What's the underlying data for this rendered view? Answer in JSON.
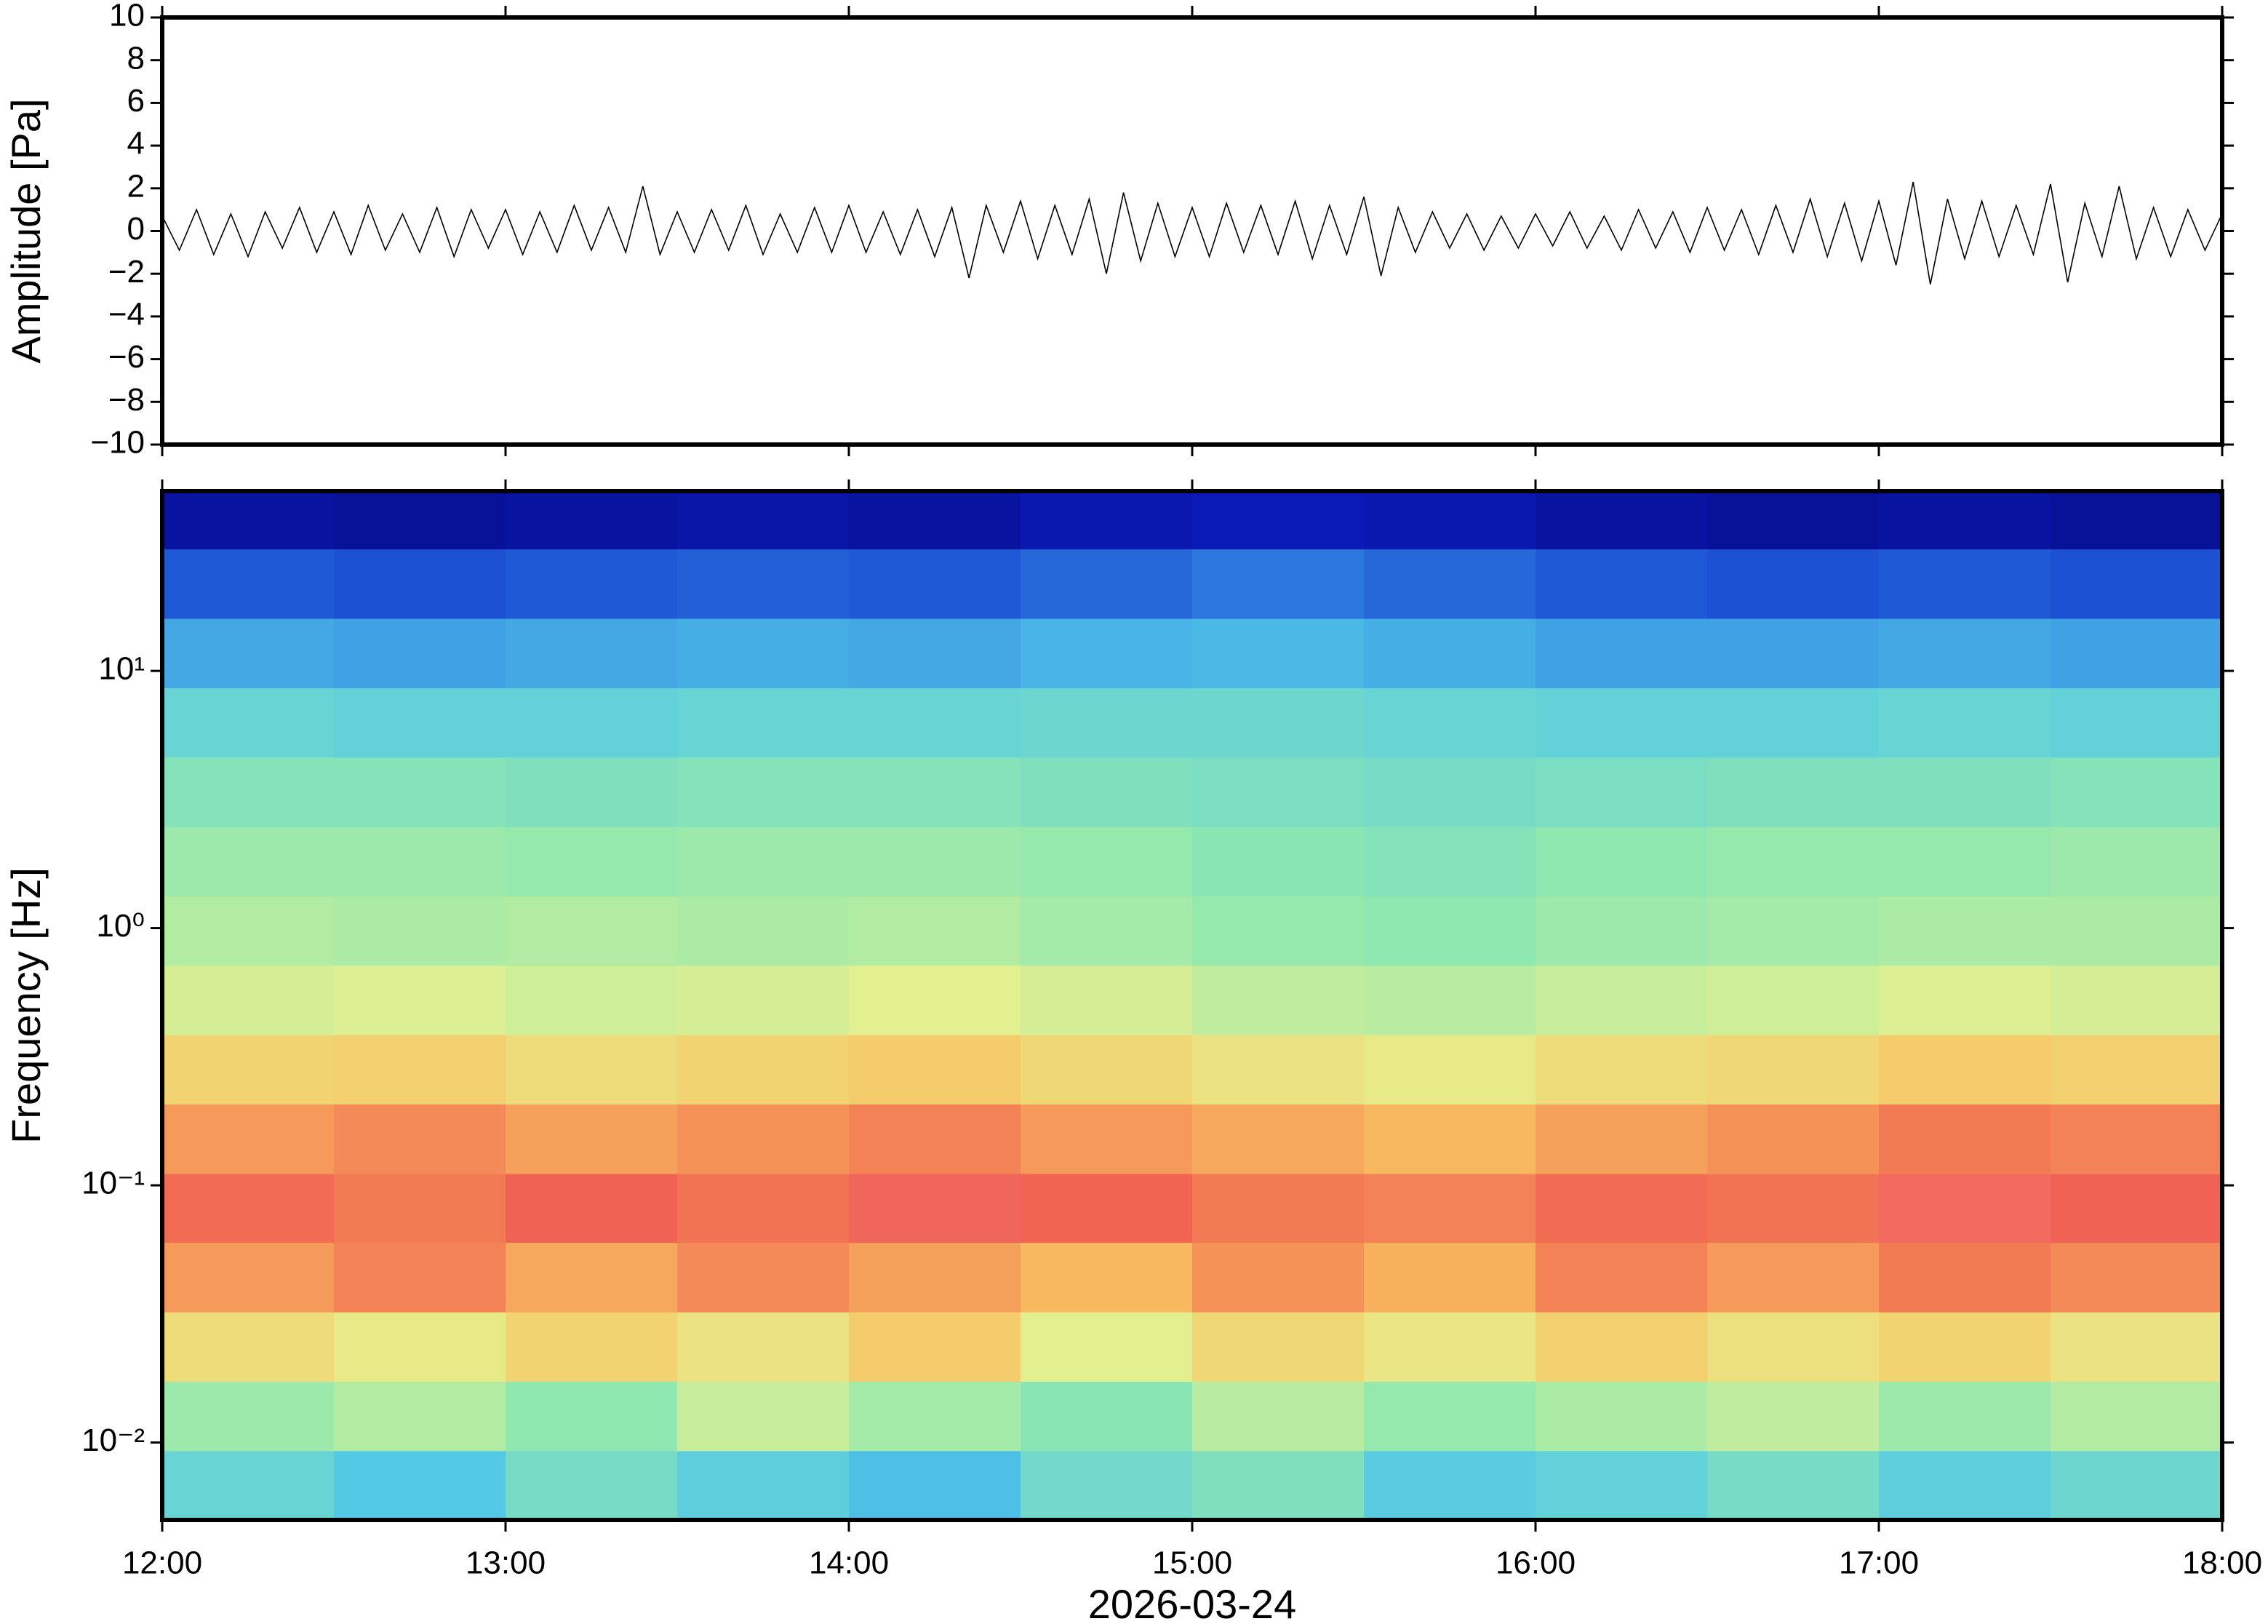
{
  "chart_data": [
    {
      "type": "line",
      "ylabel": "Amplitude [Pa]",
      "color": "#000000",
      "xlim": [
        12,
        18
      ],
      "xticks": [
        12,
        13,
        14,
        15,
        16,
        17,
        18
      ],
      "ylim": [
        -10,
        10
      ],
      "yticks": [
        {
          "value": -10,
          "label": "−10"
        },
        {
          "value": -8,
          "label": "−8"
        },
        {
          "value": -6,
          "label": "−6"
        },
        {
          "value": -4,
          "label": "−4"
        },
        {
          "value": -2,
          "label": "−2"
        },
        0,
        2,
        4,
        6,
        8,
        10
      ],
      "x": [
        12,
        12.05,
        12.1,
        12.15,
        12.2,
        12.25,
        12.3,
        12.35,
        12.4,
        12.45,
        12.5,
        12.55,
        12.6,
        12.65,
        12.7,
        12.75,
        12.8,
        12.85,
        12.9,
        12.95,
        13,
        13.05,
        13.1,
        13.15,
        13.2,
        13.25,
        13.3,
        13.35,
        13.4,
        13.45,
        13.5,
        13.55,
        13.6,
        13.65,
        13.7,
        13.75,
        13.8,
        13.85,
        13.9,
        13.95,
        14,
        14.05,
        14.1,
        14.15,
        14.2,
        14.25,
        14.3,
        14.35,
        14.4,
        14.45,
        14.5,
        14.55,
        14.6,
        14.65,
        14.7,
        14.75,
        14.8,
        14.85,
        14.9,
        14.95,
        15,
        15.05,
        15.1,
        15.15,
        15.2,
        15.25,
        15.3,
        15.35,
        15.4,
        15.45,
        15.5,
        15.55,
        15.6,
        15.65,
        15.7,
        15.75,
        15.8,
        15.85,
        15.9,
        15.95,
        16,
        16.05,
        16.1,
        16.15,
        16.2,
        16.25,
        16.3,
        16.35,
        16.4,
        16.45,
        16.5,
        16.55,
        16.6,
        16.65,
        16.7,
        16.75,
        16.8,
        16.85,
        16.9,
        16.95,
        17,
        17.05,
        17.1,
        17.15,
        17.2,
        17.25,
        17.3,
        17.35,
        17.4,
        17.45,
        17.5,
        17.55,
        17.6,
        17.65,
        17.7,
        17.75,
        17.8,
        17.85,
        17.9,
        17.95,
        18
      ],
      "values": [
        0.7,
        -0.9,
        1.0,
        -1.1,
        0.8,
        -1.2,
        0.9,
        -0.8,
        1.1,
        -1.0,
        0.9,
        -1.1,
        1.2,
        -0.9,
        0.8,
        -1.0,
        1.1,
        -1.2,
        1.0,
        -0.8,
        1.0,
        -1.1,
        0.9,
        -1.0,
        1.2,
        -0.9,
        1.1,
        -1.0,
        2.1,
        -1.1,
        0.9,
        -1.0,
        1.0,
        -0.9,
        1.2,
        -1.1,
        0.8,
        -1.0,
        1.1,
        -1.0,
        1.2,
        -1.0,
        0.9,
        -1.1,
        1.0,
        -1.2,
        1.1,
        -2.2,
        1.2,
        -1.0,
        1.4,
        -1.3,
        1.2,
        -1.1,
        1.5,
        -2.0,
        1.8,
        -1.4,
        1.3,
        -1.2,
        1.1,
        -1.2,
        1.3,
        -1.0,
        1.2,
        -1.1,
        1.4,
        -1.3,
        1.2,
        -1.1,
        1.6,
        -2.1,
        1.1,
        -1.0,
        0.9,
        -0.8,
        0.8,
        -0.9,
        0.7,
        -0.8,
        0.8,
        -0.7,
        0.9,
        -0.8,
        0.7,
        -0.9,
        1.0,
        -0.8,
        0.9,
        -1.0,
        1.1,
        -0.9,
        1.0,
        -1.1,
        1.2,
        -1.0,
        1.5,
        -1.2,
        1.3,
        -1.4,
        1.4,
        -1.6,
        2.3,
        -2.5,
        1.5,
        -1.3,
        1.4,
        -1.2,
        1.2,
        -1.1,
        2.2,
        -2.4,
        1.3,
        -1.2,
        2.1,
        -1.3,
        1.1,
        -1.2,
        1.0,
        -0.9,
        0.8
      ]
    },
    {
      "type": "heatmap",
      "ylabel": "Frequency [Hz]",
      "xlabel": "2026-03-24",
      "yscale": "log",
      "xlim": [
        12,
        18
      ],
      "xticks": [
        {
          "value": 12,
          "label": "12:00"
        },
        {
          "value": 13,
          "label": "13:00"
        },
        {
          "value": 14,
          "label": "14:00"
        },
        {
          "value": 15,
          "label": "15:00"
        },
        {
          "value": 16,
          "label": "16:00"
        },
        {
          "value": 17,
          "label": "17:00"
        },
        {
          "value": 18,
          "label": "18:00"
        }
      ],
      "ylim": [
        0.005,
        50
      ],
      "yticks": [
        {
          "value": 0.01,
          "label": "10⁻²"
        },
        {
          "value": 0.1,
          "label": "10⁻¹"
        },
        {
          "value": 1,
          "label": "10⁰"
        },
        {
          "value": 10,
          "label": "10¹"
        }
      ],
      "zlim": [
        0,
        1
      ],
      "colorscale": [
        "#06066e",
        "#0a1fc8",
        "#2f7fe0",
        "#52c8e8",
        "#8fe8b0",
        "#e6f08e",
        "#f8c060",
        "#f06050",
        "#f890a0"
      ],
      "x_edges": [
        12,
        12.5,
        13,
        13.5,
        14,
        14.5,
        15,
        15.5,
        16,
        16.5,
        17,
        17.5,
        18
      ],
      "y_edges": [
        0.005,
        0.0093,
        0.0173,
        0.0322,
        0.06,
        0.111,
        0.207,
        0.385,
        0.717,
        1.33,
        2.48,
        4.62,
        8.6,
        16,
        29.8,
        50
      ],
      "z": [
        [
          0.42,
          0.38,
          0.45,
          0.4,
          0.36,
          0.44,
          0.47,
          0.39,
          0.41,
          0.45,
          0.4,
          0.43
        ],
        [
          0.52,
          0.55,
          0.5,
          0.58,
          0.53,
          0.49,
          0.56,
          0.51,
          0.54,
          0.57,
          0.52,
          0.55
        ],
        [
          0.68,
          0.64,
          0.7,
          0.66,
          0.72,
          0.62,
          0.69,
          0.65,
          0.71,
          0.67,
          0.7,
          0.66
        ],
        [
          0.8,
          0.83,
          0.78,
          0.82,
          0.79,
          0.76,
          0.81,
          0.77,
          0.83,
          0.8,
          0.84,
          0.82
        ],
        [
          0.86,
          0.84,
          0.88,
          0.85,
          0.89,
          0.87,
          0.84,
          0.83,
          0.86,
          0.85,
          0.9,
          0.88
        ],
        [
          0.8,
          0.82,
          0.79,
          0.81,
          0.83,
          0.8,
          0.78,
          0.76,
          0.79,
          0.81,
          0.84,
          0.83
        ],
        [
          0.7,
          0.71,
          0.68,
          0.7,
          0.72,
          0.69,
          0.66,
          0.64,
          0.68,
          0.69,
          0.72,
          0.71
        ],
        [
          0.6,
          0.61,
          0.59,
          0.6,
          0.62,
          0.6,
          0.57,
          0.56,
          0.58,
          0.59,
          0.61,
          0.6
        ],
        [
          0.55,
          0.54,
          0.55,
          0.54,
          0.55,
          0.53,
          0.51,
          0.5,
          0.52,
          0.53,
          0.54,
          0.54
        ],
        [
          0.52,
          0.52,
          0.51,
          0.52,
          0.52,
          0.51,
          0.49,
          0.48,
          0.5,
          0.51,
          0.51,
          0.52
        ],
        [
          0.48,
          0.48,
          0.47,
          0.48,
          0.48,
          0.47,
          0.46,
          0.45,
          0.46,
          0.47,
          0.47,
          0.48
        ],
        [
          0.42,
          0.41,
          0.41,
          0.42,
          0.42,
          0.43,
          0.43,
          0.42,
          0.41,
          0.41,
          0.42,
          0.41
        ],
        [
          0.32,
          0.31,
          0.32,
          0.33,
          0.32,
          0.34,
          0.35,
          0.33,
          0.31,
          0.31,
          0.32,
          0.31
        ],
        [
          0.2,
          0.19,
          0.2,
          0.21,
          0.2,
          0.22,
          0.24,
          0.22,
          0.2,
          0.19,
          0.2,
          0.19
        ],
        [
          0.07,
          0.06,
          0.07,
          0.08,
          0.07,
          0.09,
          0.1,
          0.09,
          0.07,
          0.06,
          0.07,
          0.06
        ]
      ]
    }
  ]
}
